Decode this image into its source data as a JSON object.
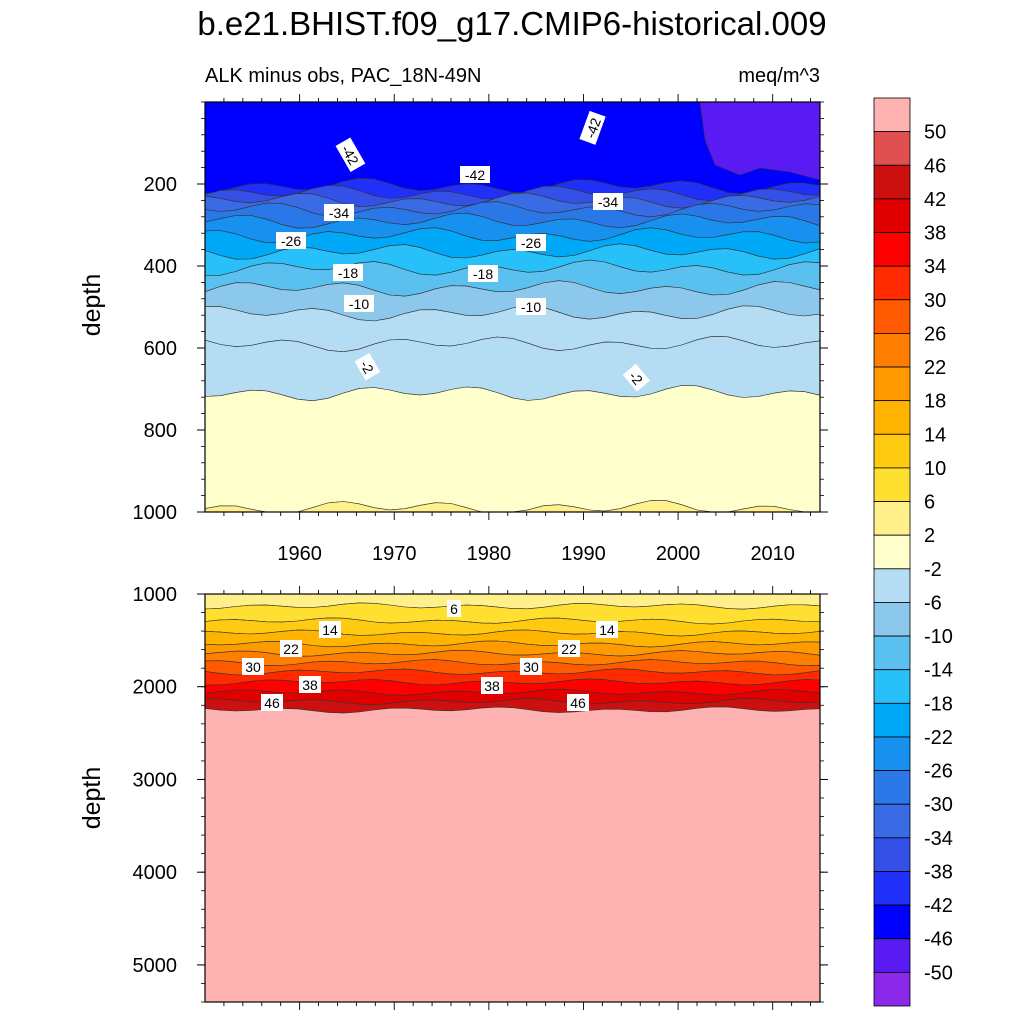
{
  "title": "b.e21.BHIST.f09_g17.CMIP6-historical.009",
  "subtitle_left": "ALK minus obs, PAC_18N-49N",
  "subtitle_right": "meq/m^3",
  "chart_data": [
    {
      "type": "heatmap",
      "panel": "upper",
      "variable": "ALK minus obs",
      "region": "PAC_18N-49N",
      "units": "meq/m^3",
      "xlabel": "",
      "ylabel": "depth",
      "xlim": [
        1950,
        2015
      ],
      "ylim": [
        1000,
        0
      ],
      "y_ticks": [
        200,
        400,
        600,
        800,
        1000
      ],
      "x_ticks": [
        1960,
        1970,
        1980,
        1990,
        2000,
        2010
      ],
      "x_tick_labels": [
        "1960",
        "1970",
        "1980",
        "1990",
        "2000",
        "2010"
      ],
      "contour_interval": 4,
      "bands": [
        {
          "from": 0,
          "to": 205,
          "level": -44
        },
        {
          "from": 205,
          "to": 222,
          "level": -40
        },
        {
          "from": 222,
          "to": 240,
          "level": -36
        },
        {
          "from": 240,
          "to": 262,
          "level": -32
        },
        {
          "from": 262,
          "to": 290,
          "level": -28
        },
        {
          "from": 290,
          "to": 325,
          "level": -24
        },
        {
          "from": 325,
          "to": 365,
          "level": -20
        },
        {
          "from": 365,
          "to": 405,
          "level": -16
        },
        {
          "from": 405,
          "to": 455,
          "level": -12
        },
        {
          "from": 455,
          "to": 515,
          "level": -8
        },
        {
          "from": 515,
          "to": 590,
          "level": -4
        },
        {
          "from": 590,
          "to": 710,
          "level": -4
        },
        {
          "from": 710,
          "to": 990,
          "level": 0
        },
        {
          "from": 990,
          "to": 1000,
          "level": 4
        }
      ],
      "surface_max_level": -48,
      "contour_labels": [
        "-42",
        "-42",
        "-42",
        "-34",
        "-34",
        "-26",
        "-26",
        "-18",
        "-18",
        "-10",
        "-10",
        "-2",
        "-2"
      ]
    },
    {
      "type": "heatmap",
      "panel": "lower",
      "variable": "ALK minus obs",
      "region": "PAC_18N-49N",
      "units": "meq/m^3",
      "xlabel": "",
      "ylabel": "depth",
      "xlim": [
        1950,
        2015
      ],
      "ylim": [
        5400,
        1000
      ],
      "y_ticks": [
        1000,
        2000,
        3000,
        4000,
        5000
      ],
      "contour_interval": 4,
      "bands": [
        {
          "from": 1000,
          "to": 1130,
          "level": 4
        },
        {
          "from": 1130,
          "to": 1290,
          "level": 8
        },
        {
          "from": 1290,
          "to": 1420,
          "level": 12
        },
        {
          "from": 1420,
          "to": 1540,
          "level": 16
        },
        {
          "from": 1540,
          "to": 1640,
          "level": 20
        },
        {
          "from": 1640,
          "to": 1740,
          "level": 24
        },
        {
          "from": 1740,
          "to": 1840,
          "level": 28
        },
        {
          "from": 1840,
          "to": 1950,
          "level": 32
        },
        {
          "from": 1950,
          "to": 2060,
          "level": 36
        },
        {
          "from": 2060,
          "to": 2160,
          "level": 40
        },
        {
          "from": 2160,
          "to": 2250,
          "level": 44
        },
        {
          "from": 2250,
          "to": 5400,
          "level": 52
        }
      ],
      "contour_labels": [
        "6",
        "14",
        "14",
        "22",
        "22",
        "30",
        "30",
        "38",
        "38",
        "46",
        "46"
      ]
    },
    {
      "type": "colorbar",
      "labels": [
        "50",
        "46",
        "42",
        "38",
        "34",
        "30",
        "26",
        "22",
        "18",
        "14",
        "10",
        "6",
        "2",
        "-2",
        "-6",
        "-10",
        "-14",
        "-18",
        "-22",
        "-26",
        "-30",
        "-34",
        "-38",
        "-42",
        "-46",
        "-50"
      ],
      "levels": [
        52,
        48,
        44,
        40,
        36,
        32,
        28,
        24,
        20,
        16,
        12,
        8,
        4,
        0,
        -4,
        -8,
        -12,
        -16,
        -20,
        -24,
        -28,
        -32,
        -36,
        -40,
        -44,
        -48,
        -52
      ],
      "colors": [
        "#ffb2b2",
        "#e05050",
        "#cc1010",
        "#e00000",
        "#ff0000",
        "#ff2a00",
        "#ff5a00",
        "#ff7e00",
        "#ff9b00",
        "#ffb400",
        "#ffcb10",
        "#ffe030",
        "#fff08c",
        "#ffffcc",
        "#b4dcf2",
        "#8cc8ec",
        "#5ac0f0",
        "#28c0f8",
        "#00a8f8",
        "#1890f0",
        "#2a78e8",
        "#3a6ae4",
        "#3550e6",
        "#2030f8",
        "#0000ff",
        "#5a1af2",
        "#8c28e8"
      ]
    }
  ]
}
